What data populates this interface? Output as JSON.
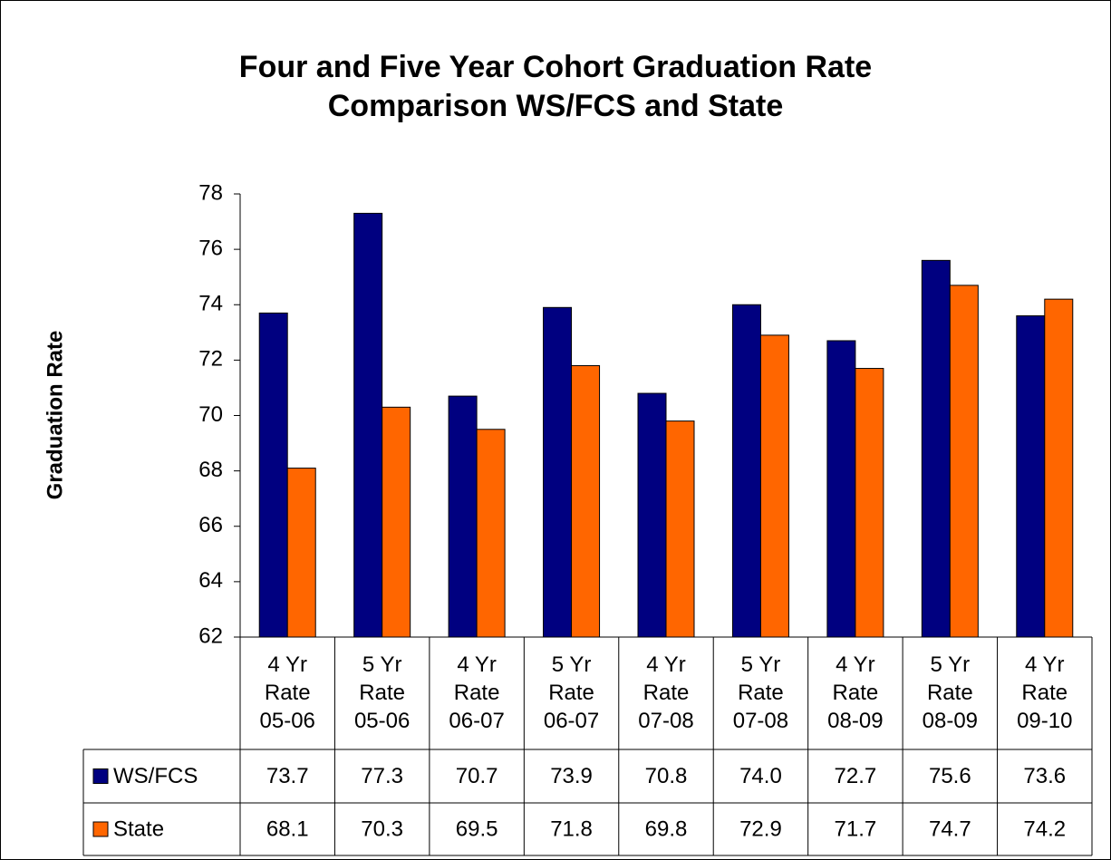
{
  "chart_data": {
    "type": "bar",
    "title": "Four and Five Year Cohort Graduation Rate",
    "subtitle": "Comparison WS/FCS and State",
    "y_label": "Graduation Rate",
    "categories": [
      "4 Yr Rate 05-06",
      "5 Yr Rate 05-06",
      "4 Yr Rate 06-07",
      "5 Yr Rate 06-07",
      "4 Yr Rate 07-08",
      "5 Yr Rate 07-08",
      "4 Yr Rate 08-09",
      "5 Yr Rate 08-09",
      "4 Yr Rate 09-10"
    ],
    "series": [
      {
        "name": "WS/FCS",
        "color": "#000080",
        "values": [
          73.7,
          77.3,
          70.7,
          73.9,
          70.8,
          74.0,
          72.7,
          75.6,
          73.6
        ],
        "value_labels": [
          "73.7",
          "77.3",
          "70.7",
          "73.9",
          "70.8",
          "74.0",
          "72.7",
          "75.6",
          "73.6"
        ]
      },
      {
        "name": "State",
        "color": "#ff6600",
        "values": [
          68.1,
          70.3,
          69.5,
          71.8,
          69.8,
          72.9,
          71.7,
          74.7,
          74.2
        ]
      }
    ],
    "ylim": [
      62,
      78
    ],
    "yticks": [
      62,
      64,
      66,
      68,
      70,
      72,
      74,
      76,
      78
    ],
    "grid": false
  }
}
